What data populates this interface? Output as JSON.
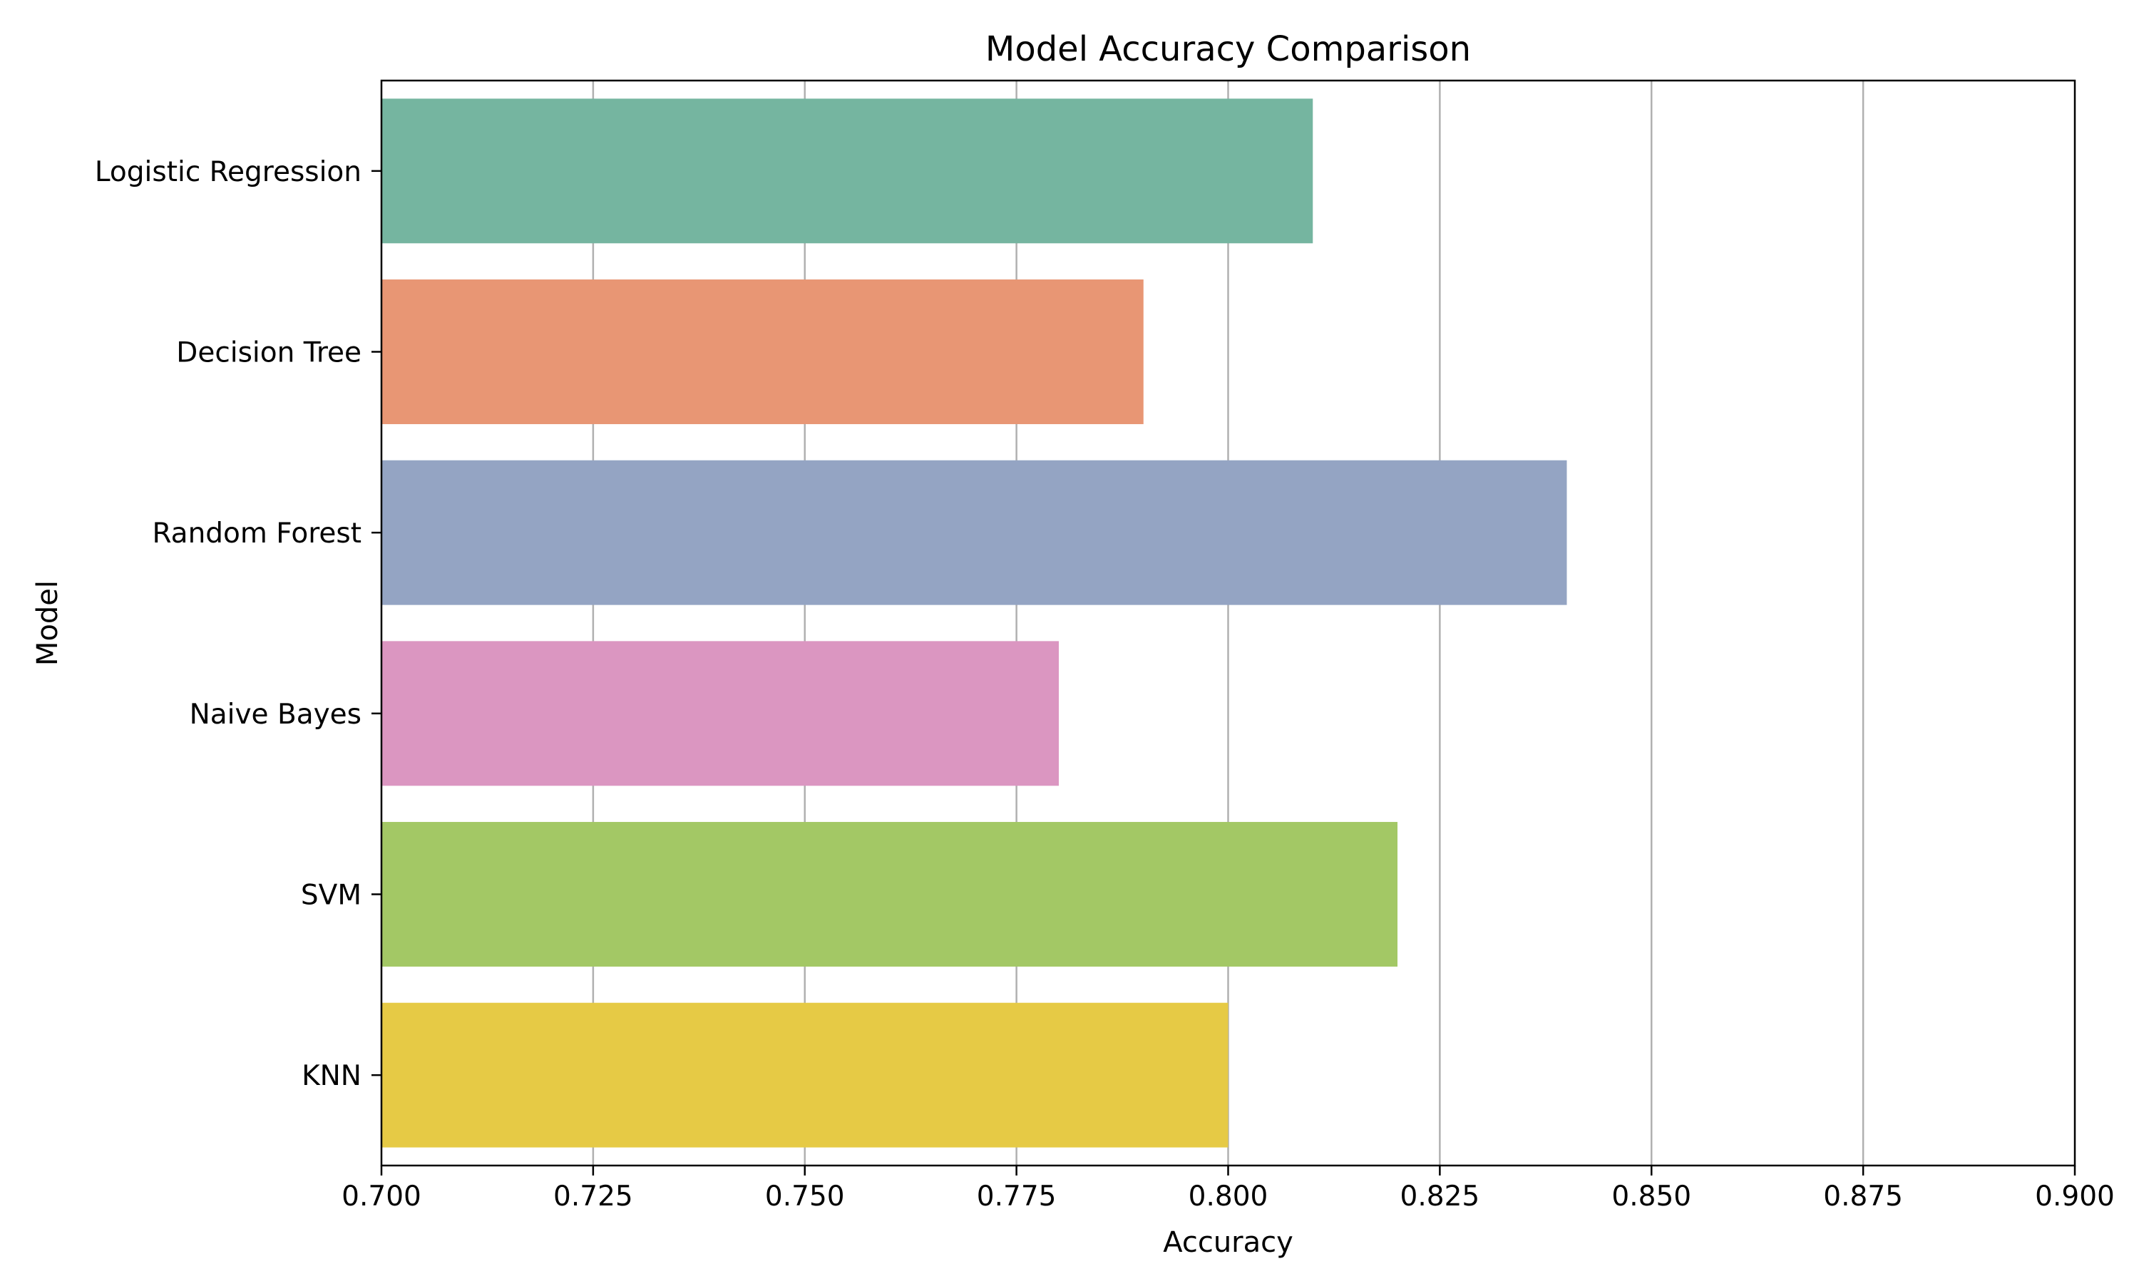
{
  "chart_data": {
    "type": "bar",
    "orientation": "horizontal",
    "title": "Model Accuracy Comparison",
    "xlabel": "Accuracy",
    "ylabel": "Model",
    "categories": [
      "Logistic Regression",
      "Decision Tree",
      "Random Forest",
      "Naive Bayes",
      "SVM",
      "KNN"
    ],
    "values": [
      0.81,
      0.79,
      0.84,
      0.78,
      0.82,
      0.8
    ],
    "colors": [
      "#75b5a0",
      "#e89674",
      "#94a4c3",
      "#db96c1",
      "#a3c865",
      "#e6ca45"
    ],
    "xlim": [
      0.7,
      0.9
    ],
    "xticks": [
      "0.700",
      "0.725",
      "0.750",
      "0.775",
      "0.800",
      "0.825",
      "0.850",
      "0.875",
      "0.900"
    ],
    "grid": "x-axis vertical lines",
    "grid_color": "#b0b0b0",
    "legend": "none"
  }
}
